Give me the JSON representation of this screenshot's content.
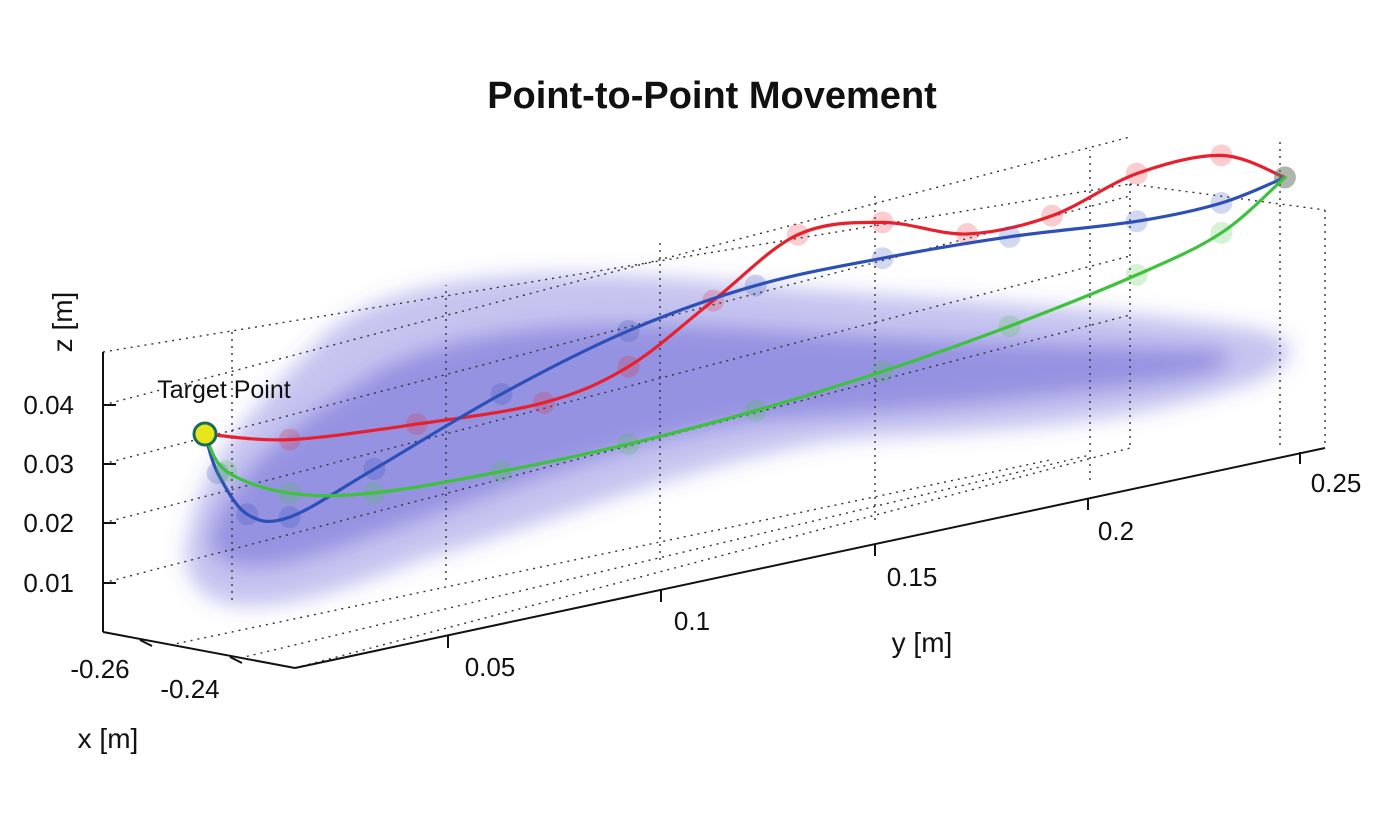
{
  "chart_data": {
    "type": "line",
    "title": "Point-to-Point Movement",
    "xlabel": "x [m]",
    "ylabel": "y [m]",
    "zlabel": "z [m]",
    "grid": true,
    "x_ticks": [
      "-0.26",
      "-0.24"
    ],
    "y_ticks": [
      "0.05",
      "0.1",
      "0.15",
      "0.2",
      "0.25"
    ],
    "z_ticks": [
      "0.01",
      "0.02",
      "0.03",
      "0.04"
    ],
    "annotation": "Target Point",
    "series_colors": {
      "red": "#e8202e",
      "blue": "#2c4fb8",
      "green": "#3ec23e",
      "envelope": "#5a55d0",
      "target": "#e6e61a"
    },
    "series": [
      {
        "color": "red",
        "points": [
          [
            0.0,
            0.034
          ],
          [
            0.02,
            0.03
          ],
          [
            0.05,
            0.028
          ],
          [
            0.08,
            0.027
          ],
          [
            0.1,
            0.03
          ],
          [
            0.12,
            0.038
          ],
          [
            0.14,
            0.046
          ],
          [
            0.16,
            0.045
          ],
          [
            0.18,
            0.04
          ],
          [
            0.2,
            0.04
          ],
          [
            0.22,
            0.044
          ],
          [
            0.24,
            0.044
          ],
          [
            0.255,
            0.038
          ]
        ]
      },
      {
        "color": "blue",
        "points": [
          [
            0.0,
            0.034
          ],
          [
            0.003,
            0.027
          ],
          [
            0.01,
            0.019
          ],
          [
            0.02,
            0.017
          ],
          [
            0.04,
            0.022
          ],
          [
            0.07,
            0.03
          ],
          [
            0.1,
            0.036
          ],
          [
            0.13,
            0.039
          ],
          [
            0.16,
            0.039
          ],
          [
            0.19,
            0.038
          ],
          [
            0.22,
            0.036
          ],
          [
            0.24,
            0.036
          ],
          [
            0.255,
            0.038
          ]
        ]
      },
      {
        "color": "green",
        "points": [
          [
            0.0,
            0.034
          ],
          [
            0.005,
            0.027
          ],
          [
            0.02,
            0.021
          ],
          [
            0.04,
            0.018
          ],
          [
            0.07,
            0.017
          ],
          [
            0.1,
            0.017
          ],
          [
            0.13,
            0.018
          ],
          [
            0.16,
            0.02
          ],
          [
            0.19,
            0.023
          ],
          [
            0.22,
            0.027
          ],
          [
            0.24,
            0.031
          ],
          [
            0.255,
            0.038
          ]
        ]
      }
    ]
  }
}
